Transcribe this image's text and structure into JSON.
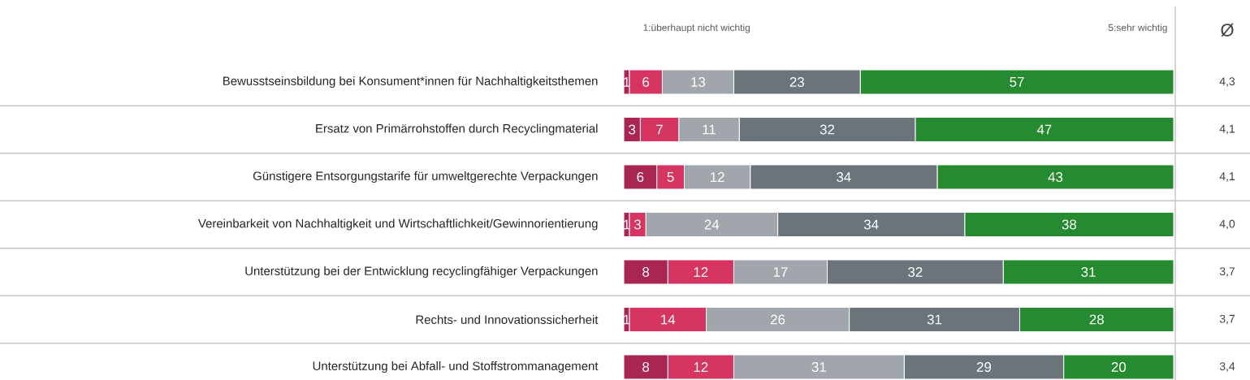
{
  "chart_data": {
    "type": "bar",
    "orientation": "horizontal",
    "stacked": true,
    "data_labels": true,
    "tick_labels": "y",
    "grid": "y",
    "categories": [
      "Bewusstseinsbildung bei Konsument*innen für Nachhaltigkeitsthemen",
      "Ersatz von Primärrohstoffen durch Recyclingmaterial",
      "Günstigere Entsorgungstarife für umweltgerechte Verpackungen",
      "Vereinbarkeit von Nachhaltigkeit und Wirtschaftlichkeit/Gewinnorientierung",
      "Unterstützung bei der Entwicklung recyclingfähiger Verpackungen",
      "Rechts- und Innovationssicherheit",
      "Unterstützung bei  Abfall- und Stoffstrommanagement"
    ],
    "series": [
      {
        "color": "#a8264f",
        "values": [
          1,
          3,
          6,
          1,
          8,
          1,
          8
        ]
      },
      {
        "color": "#d63461",
        "values": [
          6,
          7,
          5,
          3,
          12,
          14,
          12
        ]
      },
      {
        "color": "#a0a6ab",
        "values": [
          13,
          11,
          12,
          24,
          17,
          26,
          31
        ]
      },
      {
        "color": "#6a747a",
        "values": [
          23,
          32,
          34,
          34,
          32,
          31,
          29
        ]
      },
      {
        "color": "#268a30",
        "values": [
          57,
          47,
          43,
          38,
          31,
          28,
          20
        ]
      }
    ],
    "annotations": [
      "1:überhaupt nicht wichtig",
      "5:sehr wichtig",
      "Ø",
      "4,3",
      "4,1",
      "4,1",
      "4,0",
      "3,7",
      "3,7",
      "3,4"
    ]
  }
}
